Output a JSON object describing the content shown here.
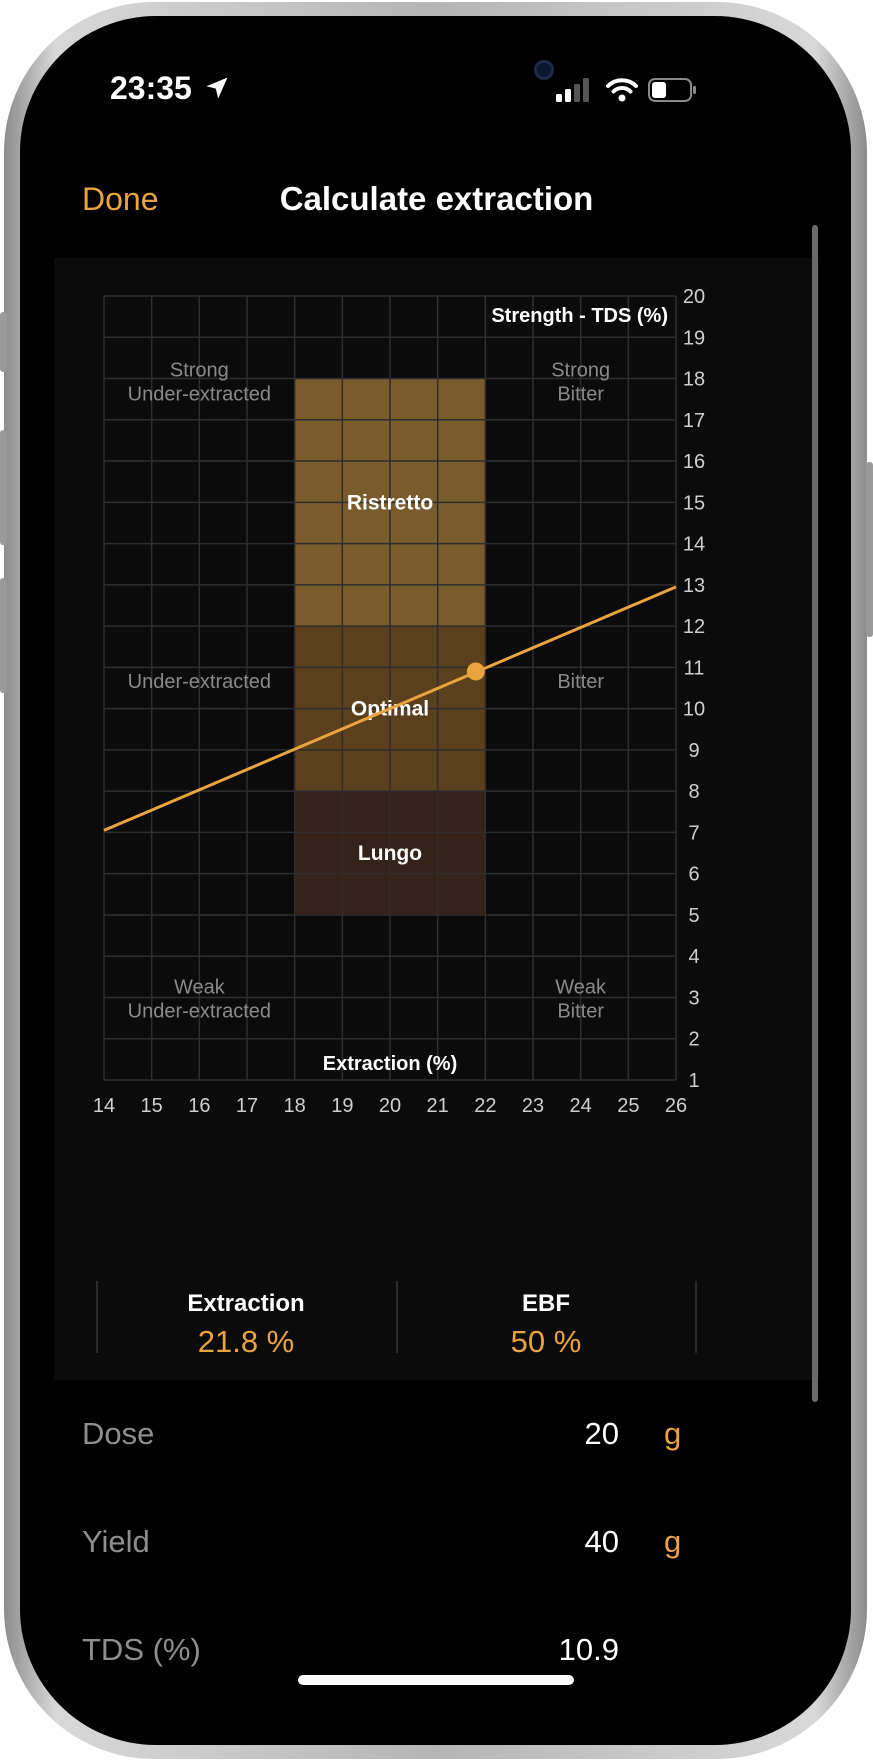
{
  "status_bar": {
    "time": "23:35"
  },
  "nav": {
    "done_label": "Done",
    "title": "Calculate extraction"
  },
  "chart_data": {
    "type": "scatter",
    "xlabel": "Extraction (%)",
    "ylabel": "Strength - TDS (%)",
    "x_ticks": [
      14,
      15,
      16,
      17,
      18,
      19,
      20,
      21,
      22,
      23,
      24,
      25,
      26
    ],
    "y_ticks": [
      1,
      2,
      3,
      4,
      5,
      6,
      7,
      8,
      9,
      10,
      11,
      12,
      13,
      14,
      15,
      16,
      17,
      18,
      19,
      20
    ],
    "xlim": [
      14,
      26
    ],
    "ylim": [
      1,
      20
    ],
    "grid": true,
    "zones": [
      {
        "label": "Ristretto",
        "x": [
          18,
          22
        ],
        "y": [
          12,
          18
        ],
        "color": "#7a5b2b"
      },
      {
        "label": "Optimal",
        "x": [
          18,
          22
        ],
        "y": [
          8,
          12
        ],
        "color": "#5c3f1c"
      },
      {
        "label": "Lungo",
        "x": [
          18,
          22
        ],
        "y": [
          5,
          8
        ],
        "color": "#35231a"
      }
    ],
    "region_labels": [
      {
        "lines": [
          "Strong",
          "Under-extracted"
        ],
        "x": 16,
        "y": 18.05
      },
      {
        "lines": [
          "Strong",
          "Bitter"
        ],
        "x": 24,
        "y": 18.05
      },
      {
        "lines": [
          "Under-extracted"
        ],
        "x": 16,
        "y": 10.5
      },
      {
        "lines": [
          "Bitter"
        ],
        "x": 24,
        "y": 10.5
      },
      {
        "lines": [
          "Weak",
          "Under-extracted"
        ],
        "x": 16,
        "y": 3.1
      },
      {
        "lines": [
          "Weak",
          "Bitter"
        ],
        "x": 24,
        "y": 3.1
      }
    ],
    "line": {
      "x": [
        14,
        26
      ],
      "y": [
        7.05,
        12.95
      ],
      "color": "#e9a43f"
    },
    "point": {
      "x": 21.8,
      "y": 10.9,
      "color": "#e9a43f"
    }
  },
  "stats": {
    "extraction_label": "Extraction",
    "extraction_value": "21.8 %",
    "ebf_label": "EBF",
    "ebf_value": "50 %"
  },
  "form": {
    "dose": {
      "label": "Dose",
      "value": "20",
      "unit": "g"
    },
    "yield": {
      "label": "Yield",
      "value": "40",
      "unit": "g"
    },
    "tds": {
      "label": "TDS (%)",
      "value": "10.9"
    }
  }
}
